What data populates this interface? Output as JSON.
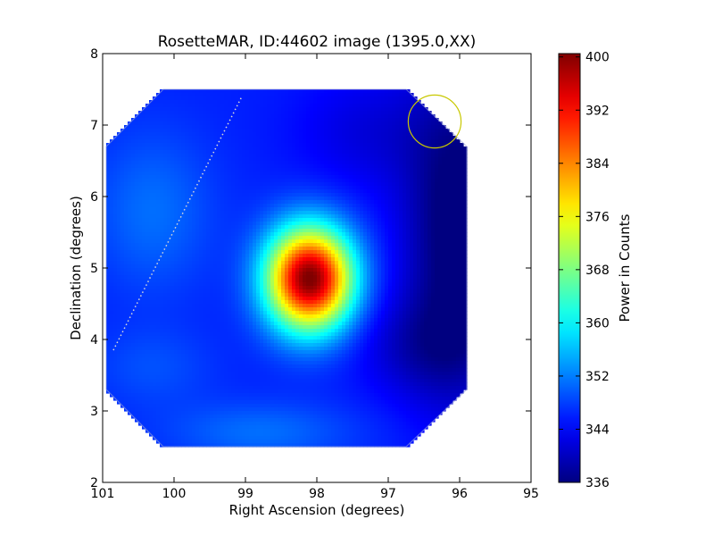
{
  "chart_data": {
    "type": "heatmap",
    "title": "RosetteMAR, ID:44602 image (1395.0,XX)",
    "xlabel": "Right Ascension (degrees)",
    "ylabel": "Declination (degrees)",
    "xlim": [
      101,
      95
    ],
    "ylim": [
      2,
      8
    ],
    "x_ticks": [
      "101",
      "100",
      "99",
      "98",
      "97",
      "96",
      "95"
    ],
    "y_ticks": [
      "2",
      "3",
      "4",
      "5",
      "6",
      "7",
      "8"
    ],
    "colorbar": {
      "label": "Power in Counts",
      "range": [
        336,
        400.5
      ],
      "ticks": [
        "336",
        "344",
        "352",
        "360",
        "368",
        "376",
        "384",
        "392",
        "400"
      ],
      "colormap": "jet"
    },
    "field_octagon_vertices_ra_dec": [
      [
        100.15,
        7.5
      ],
      [
        96.75,
        7.5
      ],
      [
        95.9,
        6.7
      ],
      [
        95.9,
        3.3
      ],
      [
        96.75,
        2.5
      ],
      [
        100.15,
        2.5
      ],
      [
        100.95,
        3.3
      ],
      [
        100.95,
        6.7
      ]
    ],
    "background_level": 346,
    "hotspots": [
      {
        "ra": 98.1,
        "dec": 4.85,
        "peak": 401,
        "sigma_ra": 0.42,
        "sigma_dec": 0.5
      },
      {
        "ra": 96.0,
        "dec": 5.5,
        "peak": 334,
        "sigma_ra": 0.55,
        "sigma_dec": 1.6
      },
      {
        "ra": 96.6,
        "dec": 3.9,
        "peak": 341,
        "sigma_ra": 0.6,
        "sigma_dec": 0.5
      },
      {
        "ra": 97.3,
        "dec": 6.9,
        "peak": 342,
        "sigma_ra": 0.7,
        "sigma_dec": 0.6
      },
      {
        "ra": 100.3,
        "dec": 5.8,
        "peak": 351,
        "sigma_ra": 0.6,
        "sigma_dec": 0.8
      },
      {
        "ra": 98.8,
        "dec": 2.7,
        "peak": 351,
        "sigma_ra": 0.9,
        "sigma_dec": 0.3
      },
      {
        "ra": 100.3,
        "dec": 3.6,
        "peak": 349,
        "sigma_ra": 0.6,
        "sigma_dec": 0.4
      }
    ],
    "annotations": [
      {
        "type": "dotted-line",
        "from": [
          100.85,
          3.85
        ],
        "to": [
          99.05,
          7.4
        ],
        "color": "#d8d8d8"
      },
      {
        "type": "circle",
        "center": [
          96.35,
          7.05
        ],
        "radius_ra": 0.37,
        "color": "#c8c800"
      }
    ]
  }
}
